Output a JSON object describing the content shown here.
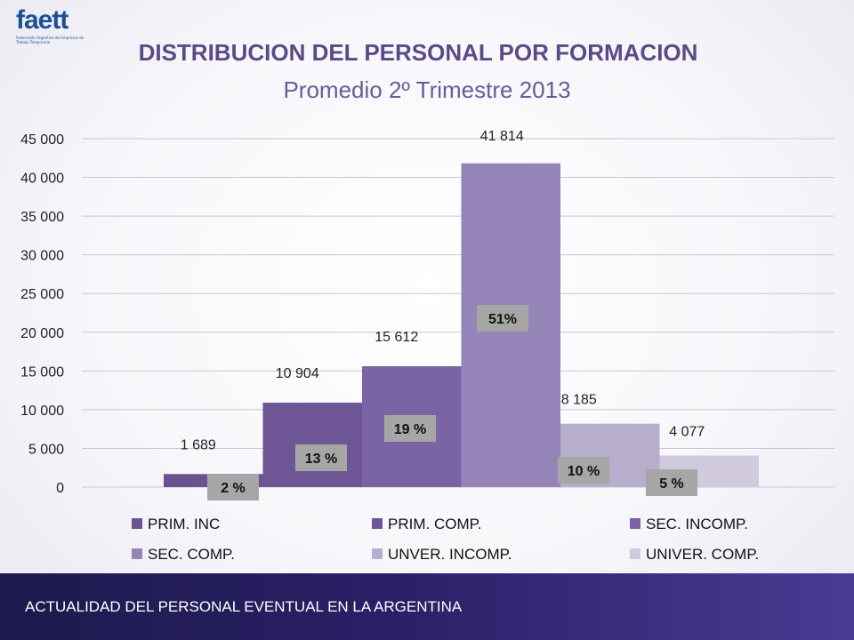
{
  "logo": {
    "text": "faett",
    "subtext": "Federación Argentina de Empresas de Trabajo Temporario"
  },
  "header": {
    "title": "DISTRIBUCION DEL PERSONAL POR FORMACION",
    "subtitle": "Promedio 2º Trimestre 2013"
  },
  "footer": {
    "text": "ACTUALIDAD DEL PERSONAL EVENTUAL EN LA ARGENTINA"
  },
  "colors": [
    "#6a548f",
    "#6d5596",
    "#7b64a6",
    "#9484b8",
    "#b7adcd",
    "#d1cadf"
  ],
  "chart_data": {
    "type": "bar",
    "title": "",
    "xlabel": "",
    "ylabel": "",
    "ylim": [
      0,
      45000
    ],
    "yticks": [
      0,
      5000,
      10000,
      15000,
      20000,
      25000,
      30000,
      35000,
      40000,
      45000
    ],
    "ytick_labels": [
      "0",
      "5 000",
      "10 000",
      "15 000",
      "20 000",
      "25 000",
      "30 000",
      "35 000",
      "40 000",
      "45 000"
    ],
    "grid": true,
    "legend_position": "bottom",
    "series": [
      {
        "name": "PRIM. INC",
        "value": 1689,
        "value_label": "1 689",
        "pct_label": "2 %"
      },
      {
        "name": "PRIM. COMP.",
        "value": 10904,
        "value_label": "10 904",
        "pct_label": "13 %"
      },
      {
        "name": "SEC. INCOMP.",
        "value": 15612,
        "value_label": "15 612",
        "pct_label": "19 %"
      },
      {
        "name": "SEC. COMP.",
        "value": 41814,
        "value_label": "41 814",
        "pct_label": "51%"
      },
      {
        "name": "UNVER. INCOMP.",
        "value": 8185,
        "value_label": "8 185",
        "pct_label": "10 %"
      },
      {
        "name": "UNIVER. COMP.",
        "value": 4077,
        "value_label": "4 077",
        "pct_label": "5 %"
      }
    ]
  }
}
